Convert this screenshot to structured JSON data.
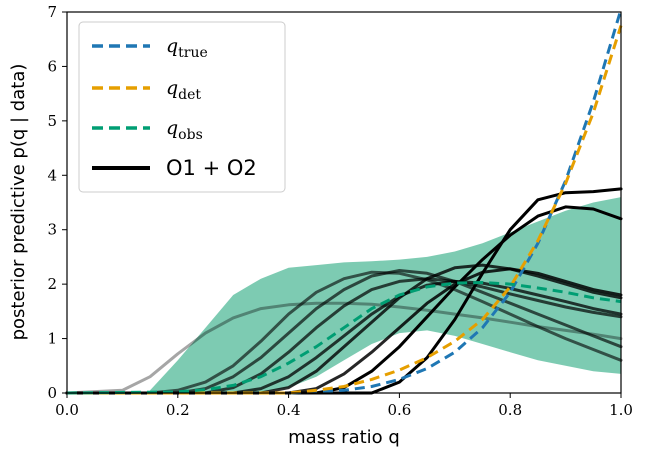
{
  "chart_data": {
    "type": "line",
    "xlabel": "mass ratio q",
    "ylabel": "posterior predictive p(q | data)",
    "xlim": [
      0.0,
      1.0
    ],
    "ylim": [
      0,
      7
    ],
    "xticks": [
      "0.0",
      "0.2",
      "0.4",
      "0.6",
      "0.8",
      "1.0"
    ],
    "yticks": [
      "0",
      "1",
      "2",
      "3",
      "4",
      "5",
      "6",
      "7"
    ],
    "grid": false,
    "legend_position": "top-left",
    "legend": [
      {
        "label_main": "q",
        "label_sub": "true",
        "style": "dashed",
        "color": "#1f77b4"
      },
      {
        "label_main": "q",
        "label_sub": "det",
        "style": "dashed",
        "color": "#e69f00"
      },
      {
        "label_main": "q",
        "label_sub": "obs",
        "style": "dashed",
        "color": "#009e73"
      },
      {
        "label_main": "O1 + O2",
        "label_sub": "",
        "style": "solid",
        "color": "#000000"
      }
    ],
    "band": {
      "color": "#66c2a5",
      "x": [
        0.15,
        0.2,
        0.25,
        0.3,
        0.35,
        0.4,
        0.45,
        0.5,
        0.55,
        0.6,
        0.65,
        0.7,
        0.75,
        0.8,
        0.85,
        0.9,
        0.95,
        1.0
      ],
      "upper": [
        0.05,
        0.6,
        1.2,
        1.8,
        2.1,
        2.3,
        2.35,
        2.4,
        2.42,
        2.45,
        2.5,
        2.6,
        2.75,
        2.95,
        3.15,
        3.35,
        3.5,
        3.6
      ],
      "lower": [
        0.0,
        0.0,
        0.0,
        0.0,
        0.02,
        0.1,
        0.3,
        0.6,
        0.9,
        1.1,
        1.15,
        1.05,
        0.9,
        0.75,
        0.6,
        0.5,
        0.4,
        0.35
      ]
    },
    "series": [
      {
        "name": "q_true",
        "style": "dashed",
        "color": "#1f77b4",
        "x": [
          0.0,
          0.4,
          0.5,
          0.55,
          0.6,
          0.65,
          0.7,
          0.75,
          0.8,
          0.85,
          0.9,
          0.95,
          1.0
        ],
        "y": [
          0.0,
          0.0,
          0.05,
          0.12,
          0.25,
          0.45,
          0.75,
          1.2,
          1.85,
          2.75,
          3.9,
          5.35,
          7.05
        ]
      },
      {
        "name": "q_det",
        "style": "dashed",
        "color": "#e69f00",
        "x": [
          0.0,
          0.4,
          0.45,
          0.5,
          0.55,
          0.6,
          0.65,
          0.7,
          0.75,
          0.8,
          0.85,
          0.9,
          0.95,
          1.0
        ],
        "y": [
          0.0,
          0.0,
          0.05,
          0.12,
          0.25,
          0.42,
          0.65,
          0.95,
          1.35,
          1.95,
          2.8,
          3.85,
          5.15,
          6.75
        ]
      },
      {
        "name": "q_obs",
        "style": "dashed",
        "color": "#009e73",
        "x": [
          0.0,
          0.2,
          0.25,
          0.3,
          0.35,
          0.4,
          0.45,
          0.5,
          0.55,
          0.6,
          0.65,
          0.7,
          0.75,
          0.8,
          0.85,
          0.9,
          0.95,
          1.0
        ],
        "y": [
          0.0,
          0.02,
          0.06,
          0.14,
          0.3,
          0.55,
          0.85,
          1.2,
          1.55,
          1.8,
          1.95,
          2.02,
          2.03,
          2.0,
          1.93,
          1.85,
          1.75,
          1.68
        ]
      },
      {
        "name": "",
        "style": "solid",
        "color": "#000000",
        "opacity": 0.35,
        "x": [
          0.0,
          0.1,
          0.15,
          0.2,
          0.25,
          0.3,
          0.35,
          0.4,
          0.45,
          0.5,
          0.55,
          0.6,
          0.65,
          0.7,
          0.75,
          0.8,
          0.85,
          0.9,
          0.95,
          1.0
        ],
        "y": [
          0.0,
          0.05,
          0.3,
          0.72,
          1.1,
          1.38,
          1.55,
          1.62,
          1.65,
          1.65,
          1.63,
          1.58,
          1.52,
          1.45,
          1.38,
          1.3,
          1.22,
          1.15,
          1.08,
          1.0
        ]
      },
      {
        "name": "",
        "style": "solid",
        "color": "#000000",
        "opacity": 0.6,
        "x": [
          0.0,
          0.15,
          0.2,
          0.25,
          0.3,
          0.35,
          0.4,
          0.45,
          0.5,
          0.55,
          0.6,
          0.65,
          0.7,
          0.75,
          0.8,
          0.85,
          0.9,
          0.95,
          1.0
        ],
        "y": [
          0.0,
          0.0,
          0.05,
          0.2,
          0.5,
          0.95,
          1.45,
          1.85,
          2.1,
          2.22,
          2.2,
          2.08,
          1.9,
          1.68,
          1.45,
          1.22,
          1.0,
          0.8,
          0.6
        ]
      },
      {
        "name": "",
        "style": "solid",
        "color": "#000000",
        "opacity": 0.65,
        "x": [
          0.0,
          0.2,
          0.25,
          0.3,
          0.35,
          0.4,
          0.45,
          0.5,
          0.55,
          0.6,
          0.65,
          0.7,
          0.75,
          0.8,
          0.85,
          0.9,
          0.95,
          1.0
        ],
        "y": [
          0.0,
          0.0,
          0.08,
          0.3,
          0.65,
          1.1,
          1.55,
          1.9,
          2.15,
          2.25,
          2.2,
          2.05,
          1.85,
          1.65,
          1.45,
          1.25,
          1.05,
          0.85
        ]
      },
      {
        "name": "",
        "style": "solid",
        "color": "#000000",
        "opacity": 0.7,
        "x": [
          0.0,
          0.25,
          0.3,
          0.35,
          0.4,
          0.45,
          0.5,
          0.55,
          0.6,
          0.65,
          0.7,
          0.75,
          0.8,
          0.85,
          0.9,
          0.95,
          1.0
        ],
        "y": [
          0.0,
          0.0,
          0.1,
          0.35,
          0.75,
          1.2,
          1.6,
          1.9,
          2.05,
          2.1,
          2.05,
          1.95,
          1.82,
          1.7,
          1.58,
          1.48,
          1.4
        ]
      },
      {
        "name": "",
        "style": "solid",
        "color": "#000000",
        "opacity": 0.75,
        "x": [
          0.0,
          0.3,
          0.35,
          0.4,
          0.45,
          0.5,
          0.55,
          0.6,
          0.65,
          0.7,
          0.75,
          0.8,
          0.85,
          0.9,
          0.95,
          1.0
        ],
        "y": [
          0.0,
          0.0,
          0.08,
          0.3,
          0.65,
          1.05,
          1.45,
          1.78,
          1.98,
          2.05,
          2.02,
          1.92,
          1.8,
          1.68,
          1.55,
          1.45
        ]
      },
      {
        "name": "",
        "style": "solid",
        "color": "#000000",
        "opacity": 0.8,
        "x": [
          0.0,
          0.35,
          0.4,
          0.45,
          0.5,
          0.55,
          0.6,
          0.65,
          0.7,
          0.75,
          0.8,
          0.85,
          0.9,
          0.95,
          1.0
        ],
        "y": [
          0.0,
          0.0,
          0.1,
          0.4,
          0.85,
          1.3,
          1.75,
          2.1,
          2.3,
          2.35,
          2.28,
          2.15,
          2.0,
          1.85,
          1.75
        ]
      },
      {
        "name": "",
        "style": "solid",
        "color": "#000000",
        "opacity": 0.85,
        "x": [
          0.0,
          0.4,
          0.45,
          0.5,
          0.55,
          0.6,
          0.65,
          0.7,
          0.75,
          0.8,
          0.85,
          0.9,
          0.95,
          1.0
        ],
        "y": [
          0.0,
          0.0,
          0.08,
          0.35,
          0.75,
          1.2,
          1.65,
          2.0,
          2.22,
          2.28,
          2.2,
          2.05,
          1.9,
          1.8
        ]
      },
      {
        "name": "",
        "style": "solid",
        "color": "#000000",
        "opacity": 1.0,
        "x": [
          0.0,
          0.45,
          0.5,
          0.55,
          0.6,
          0.65,
          0.7,
          0.75,
          0.8,
          0.85,
          0.9,
          0.95,
          1.0
        ],
        "y": [
          0.0,
          0.0,
          0.1,
          0.4,
          0.85,
          1.4,
          1.95,
          2.45,
          2.9,
          3.25,
          3.42,
          3.38,
          3.2
        ]
      },
      {
        "name": "O1 + O2",
        "style": "solid",
        "color": "#000000",
        "opacity": 1.0,
        "x": [
          0.0,
          0.55,
          0.6,
          0.65,
          0.7,
          0.75,
          0.8,
          0.85,
          0.9,
          0.95,
          1.0
        ],
        "y": [
          0.0,
          0.0,
          0.2,
          0.65,
          1.35,
          2.2,
          3.0,
          3.55,
          3.68,
          3.7,
          3.75
        ]
      }
    ]
  }
}
